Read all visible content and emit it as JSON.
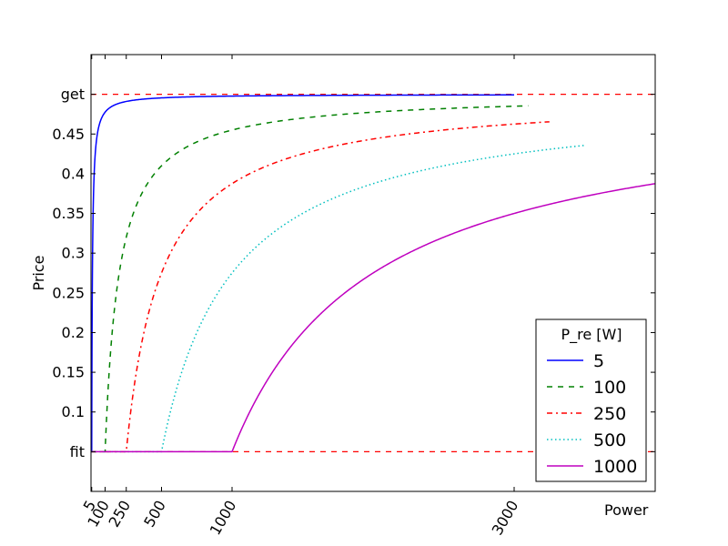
{
  "chart_data": {
    "type": "line",
    "title": "",
    "xlabel": "Power",
    "ylabel": "Price",
    "xlim": [
      0,
      4000
    ],
    "ylim": [
      0,
      0.55
    ],
    "grid": false,
    "x_ticks": [
      {
        "value": 5,
        "label": "5"
      },
      {
        "value": 100,
        "label": "100"
      },
      {
        "value": 250,
        "label": "250"
      },
      {
        "value": 500,
        "label": "500"
      },
      {
        "value": 1000,
        "label": "1000"
      },
      {
        "value": 3000,
        "label": "3000"
      }
    ],
    "y_ticks": [
      {
        "value": 0.05,
        "label": "fit"
      },
      {
        "value": 0.1,
        "label": "0.1"
      },
      {
        "value": 0.15,
        "label": "0.15"
      },
      {
        "value": 0.2,
        "label": "0.2"
      },
      {
        "value": 0.25,
        "label": "0.25"
      },
      {
        "value": 0.3,
        "label": "0.3"
      },
      {
        "value": 0.35,
        "label": "0.35"
      },
      {
        "value": 0.4,
        "label": "0.4"
      },
      {
        "value": 0.45,
        "label": "0.45"
      },
      {
        "value": 0.5,
        "label": "get"
      }
    ],
    "reference_lines": [
      {
        "y": 0.5,
        "color": "#ff0000",
        "style": "dashed"
      },
      {
        "y": 0.05,
        "color": "#ff0000",
        "style": "dashed"
      }
    ],
    "legend": {
      "title": "P_re [W]",
      "placement": "lower right"
    },
    "series": [
      {
        "name": "5",
        "color": "#0000ff",
        "style": "solid",
        "threshold": 5,
        "x": [
          0,
          5,
          10,
          20,
          40,
          80,
          150,
          300,
          600,
          1000,
          2000,
          3000
        ],
        "y": [
          0.05,
          0.05,
          0.275,
          0.3875,
          0.44375,
          0.471875,
          0.485,
          0.4925,
          0.49625,
          0.49775,
          0.498875,
          0.49925
        ]
      },
      {
        "name": "100",
        "color": "#008000",
        "style": "dashed",
        "threshold": 100,
        "x": [
          0,
          100,
          120,
          150,
          200,
          300,
          400,
          600,
          800,
          1000,
          1500,
          2000,
          2500,
          3100
        ],
        "y": [
          0.05,
          0.05,
          0.125,
          0.2,
          0.275,
          0.35,
          0.3875,
          0.425,
          0.44375,
          0.455,
          0.47,
          0.4775,
          0.482,
          0.4855
        ]
      },
      {
        "name": "250",
        "color": "#ff0000",
        "style": "dashdot",
        "threshold": 250,
        "x": [
          0,
          250,
          300,
          350,
          400,
          500,
          600,
          750,
          1000,
          1250,
          1500,
          2000,
          2500,
          3000,
          3250
        ],
        "y": [
          0.05,
          0.05,
          0.125,
          0.1786,
          0.2188,
          0.275,
          0.3125,
          0.35,
          0.3875,
          0.41,
          0.425,
          0.4438,
          0.455,
          0.4625,
          0.4654
        ]
      },
      {
        "name": "500",
        "color": "#00bfbf",
        "style": "dotted",
        "threshold": 500,
        "x": [
          0,
          500,
          550,
          600,
          700,
          800,
          1000,
          1250,
          1500,
          2000,
          2500,
          3000,
          3500
        ],
        "y": [
          0.05,
          0.05,
          0.0909,
          0.125,
          0.1786,
          0.2188,
          0.275,
          0.32,
          0.35,
          0.3875,
          0.41,
          0.425,
          0.4357
        ]
      },
      {
        "name": "1000",
        "color": "#bf00bf",
        "style": "solid",
        "threshold": 1000,
        "x": [
          0,
          1000,
          1100,
          1200,
          1400,
          1600,
          1800,
          2000,
          2500,
          3000,
          3500,
          4000
        ],
        "y": [
          0.05,
          0.05,
          0.0909,
          0.125,
          0.1786,
          0.2188,
          0.25,
          0.275,
          0.32,
          0.35,
          0.3714,
          0.3875
        ]
      }
    ]
  }
}
